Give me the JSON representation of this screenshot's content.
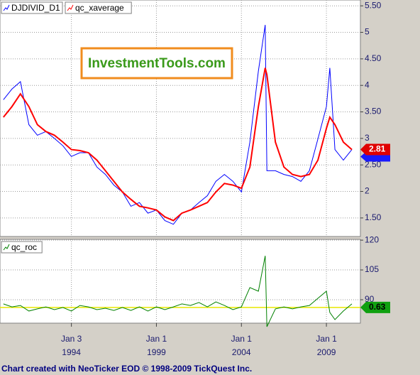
{
  "chart_data": [
    {
      "type": "line",
      "x": [
        1990.0,
        1990.5,
        1991.0,
        1991.5,
        1992.0,
        1992.5,
        1993.0,
        1993.5,
        1994.0,
        1994.5,
        1995.0,
        1995.5,
        1996.0,
        1996.5,
        1997.0,
        1997.5,
        1998.0,
        1998.5,
        1999.0,
        1999.5,
        2000.0,
        2000.5,
        2001.0,
        2001.5,
        2002.0,
        2002.5,
        2003.0,
        2003.5,
        2004.0,
        2004.5,
        2005.0,
        2005.4,
        2005.5,
        2006.0,
        2006.5,
        2007.0,
        2007.5,
        2008.0,
        2008.5,
        2009.0,
        2009.2,
        2009.5,
        2010.0,
        2010.5
      ],
      "series": [
        {
          "name": "DJDIVID_D1",
          "color": "#0000ff",
          "values": [
            3.73,
            3.93,
            4.07,
            3.26,
            3.06,
            3.13,
            3.0,
            2.86,
            2.66,
            2.73,
            2.73,
            2.46,
            2.32,
            2.12,
            1.99,
            1.72,
            1.79,
            1.59,
            1.65,
            1.45,
            1.38,
            1.59,
            1.65,
            1.79,
            1.92,
            2.19,
            2.32,
            2.19,
            1.99,
            2.93,
            4.27,
            5.14,
            2.39,
            2.39,
            2.32,
            2.28,
            2.19,
            2.39,
            2.99,
            3.6,
            4.33,
            2.79,
            2.59,
            2.79
          ]
        },
        {
          "name": "qc_xaverage",
          "color": "#ff0000",
          "values": [
            3.4,
            3.6,
            3.84,
            3.6,
            3.26,
            3.13,
            3.06,
            2.93,
            2.79,
            2.77,
            2.73,
            2.59,
            2.39,
            2.19,
            1.99,
            1.85,
            1.72,
            1.69,
            1.65,
            1.52,
            1.45,
            1.59,
            1.65,
            1.72,
            1.79,
            1.99,
            2.15,
            2.12,
            2.06,
            2.46,
            3.6,
            4.33,
            4.2,
            2.93,
            2.46,
            2.32,
            2.28,
            2.32,
            2.59,
            3.19,
            3.4,
            3.26,
            2.93,
            2.79
          ]
        }
      ],
      "xlim": [
        1989.8,
        2011.0
      ],
      "ylim": [
        1.15,
        5.61
      ],
      "yticks": [
        {
          "value": 5.5,
          "label": "5.50"
        },
        5,
        {
          "value": 4.5,
          "label": "4.50"
        },
        4,
        {
          "value": 3.5,
          "label": "3.50"
        },
        3,
        {
          "value": 2.5,
          "label": "2.50"
        },
        2,
        {
          "value": 1.5,
          "label": "1.50"
        }
      ],
      "grid": true,
      "annotations": [
        "2.81"
      ]
    },
    {
      "type": "line",
      "x": [
        1990.0,
        1990.5,
        1991.0,
        1991.5,
        1992.0,
        1992.5,
        1993.0,
        1993.5,
        1994.0,
        1994.5,
        1995.0,
        1995.5,
        1996.0,
        1996.5,
        1997.0,
        1997.5,
        1998.0,
        1998.5,
        1999.0,
        1999.5,
        2000.0,
        2000.5,
        2001.0,
        2001.5,
        2002.0,
        2002.5,
        2003.0,
        2003.5,
        2004.0,
        2004.5,
        2005.0,
        2005.4,
        2005.5,
        2006.0,
        2006.5,
        2007.0,
        2007.5,
        2008.0,
        2008.5,
        2009.0,
        2009.2,
        2009.5,
        2010.0,
        2010.5
      ],
      "series": [
        {
          "name": "qc_roc",
          "color": "#008000",
          "values": [
            87.9,
            86.4,
            87.1,
            84.3,
            85.4,
            86.4,
            85.0,
            86.1,
            84.3,
            87.1,
            86.4,
            85.0,
            85.7,
            84.6,
            86.1,
            84.6,
            86.4,
            84.3,
            86.4,
            85.0,
            86.4,
            87.9,
            87.1,
            88.6,
            86.4,
            88.9,
            87.1,
            85.0,
            86.4,
            96.1,
            94.3,
            112.1,
            76.4,
            85.4,
            86.4,
            85.4,
            86.4,
            87.1,
            90.7,
            94.3,
            83.6,
            80.0,
            84.3,
            87.9
          ]
        }
      ],
      "xlim": [
        1989.8,
        2011.0
      ],
      "ylim": [
        78.2,
        120.4
      ],
      "yticks": [
        120,
        105,
        90
      ],
      "xticks": [
        {
          "value": 1994.0,
          "label": "Jan 3",
          "year": "1994"
        },
        {
          "value": 1999.0,
          "label": "Jan 1",
          "year": "1999"
        },
        {
          "value": 2004.0,
          "label": "Jan 1",
          "year": "2004"
        },
        {
          "value": 2009.0,
          "label": "Jan 1",
          "year": "2009"
        }
      ],
      "reference_line": 86.1,
      "reference_color": "#e8e800",
      "grid": true,
      "annotations": [
        "0.63"
      ]
    }
  ],
  "logo": "InvestmentTools.com",
  "footer": "Chart created with NeoTicker EOD © 1998-2009 TickQuest Inc."
}
